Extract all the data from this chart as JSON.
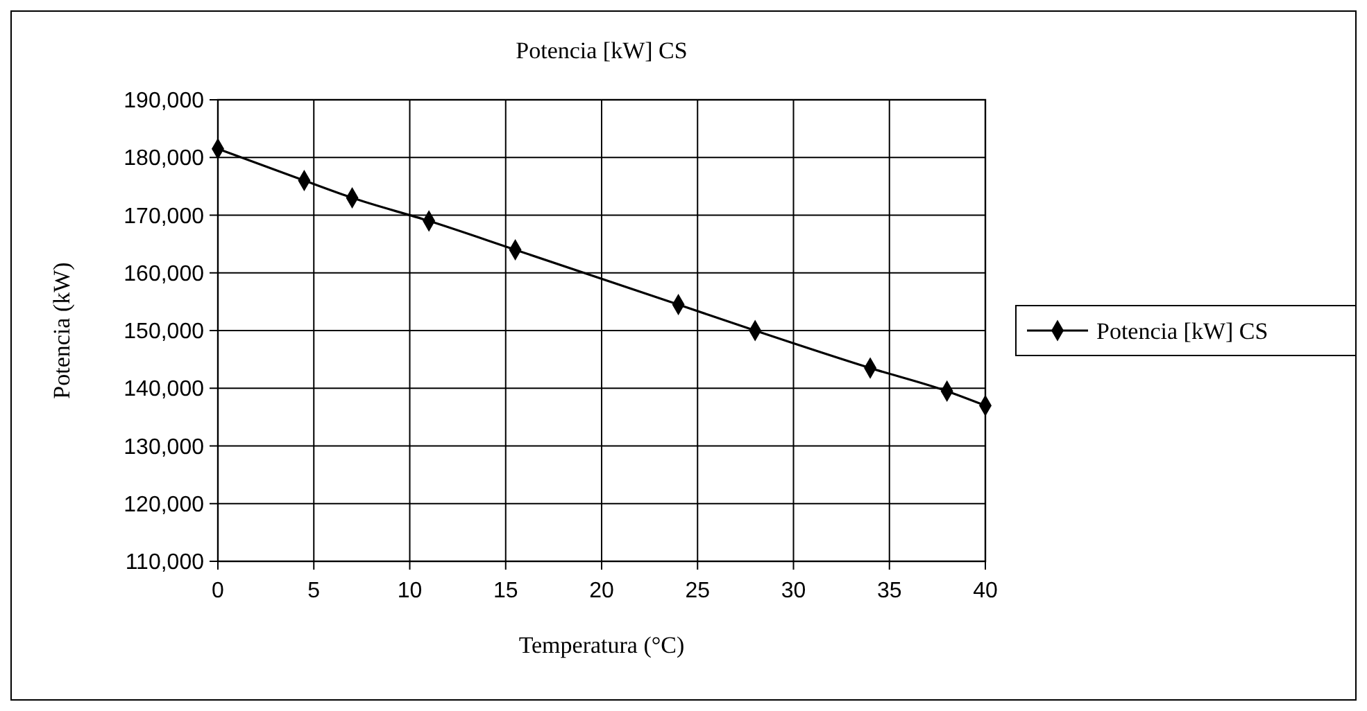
{
  "chart_data": {
    "type": "line",
    "title": "Potencia [kW] CS",
    "xlabel": "Temperatura (°C)",
    "ylabel": "Potencia (kW)",
    "xlim": [
      0,
      40
    ],
    "xticks": [
      0,
      5,
      10,
      15,
      20,
      25,
      30,
      35,
      40
    ],
    "ylim": [
      110000,
      190000
    ],
    "yticks": [
      {
        "value": 110000,
        "label": "110,000"
      },
      {
        "value": 120000,
        "label": "120,000"
      },
      {
        "value": 130000,
        "label": "130,000"
      },
      {
        "value": 140000,
        "label": "140,000"
      },
      {
        "value": 150000,
        "label": "150,000"
      },
      {
        "value": 160000,
        "label": "160,000"
      },
      {
        "value": 170000,
        "label": "170,000"
      },
      {
        "value": 180000,
        "label": "180,000"
      },
      {
        "value": 190000,
        "label": "190,000"
      }
    ],
    "grid": true,
    "legend": "right",
    "marker": "diamond",
    "line_style": "solid",
    "series": [
      {
        "name": "Potencia [kW] CS",
        "color": "#000000",
        "x": [
          0,
          4.5,
          7,
          11,
          15.5,
          24,
          28,
          34,
          38,
          40
        ],
        "values": [
          181500,
          176000,
          173000,
          169000,
          164000,
          154500,
          150000,
          143500,
          139500,
          137000
        ]
      }
    ]
  }
}
